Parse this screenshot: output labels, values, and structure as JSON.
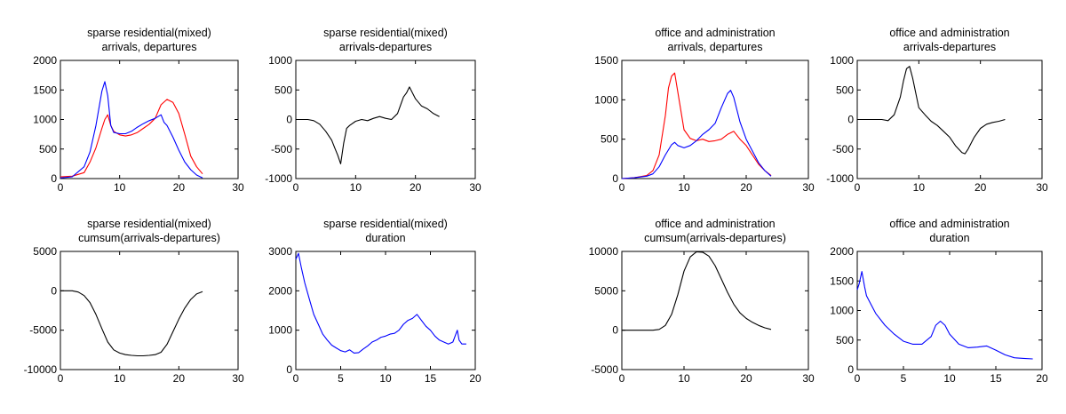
{
  "colors": {
    "arrivals": "#ff0000",
    "departures": "#0000ff",
    "difference": "#000000",
    "duration": "#0000ff",
    "axes": "#000000"
  },
  "chart_data": [
    {
      "id": "p1",
      "type": "line",
      "title": [
        "sparse residential(mixed)",
        "arrivals, departures"
      ],
      "xlim": [
        0,
        30
      ],
      "ylim": [
        0,
        2000
      ],
      "xticks": [
        0,
        10,
        20,
        30
      ],
      "yticks": [
        0,
        500,
        1000,
        1500,
        2000
      ],
      "series": [
        {
          "color": "#ff0000",
          "x": [
            0,
            2,
            4,
            5,
            6,
            7,
            7.5,
            8,
            8.5,
            9,
            10,
            11,
            12,
            13,
            14,
            15,
            16,
            17,
            18,
            19,
            20,
            21,
            22,
            23,
            24
          ],
          "y": [
            30,
            40,
            100,
            280,
            520,
            850,
            1000,
            1080,
            900,
            800,
            740,
            720,
            740,
            780,
            850,
            920,
            1020,
            1250,
            1340,
            1290,
            1100,
            750,
            380,
            200,
            80
          ]
        },
        {
          "color": "#0000ff",
          "x": [
            0,
            2,
            4,
            5,
            6,
            7,
            7.5,
            8,
            8.5,
            9,
            10,
            11,
            12,
            13,
            14,
            15,
            16,
            17,
            17.5,
            18,
            19,
            20,
            21,
            22,
            23,
            24
          ],
          "y": [
            10,
            30,
            200,
            450,
            900,
            1480,
            1640,
            1400,
            900,
            780,
            760,
            760,
            800,
            870,
            930,
            980,
            1020,
            1080,
            950,
            900,
            700,
            480,
            280,
            150,
            60,
            10
          ]
        }
      ]
    },
    {
      "id": "p2",
      "type": "line",
      "title": [
        "sparse residential(mixed)",
        "arrivals-departures"
      ],
      "xlim": [
        0,
        30
      ],
      "ylim": [
        -1000,
        1000
      ],
      "xticks": [
        0,
        10,
        20,
        30
      ],
      "yticks": [
        -1000,
        -500,
        0,
        500,
        1000
      ],
      "series": [
        {
          "color": "#000000",
          "x": [
            0,
            2,
            3,
            4,
            5,
            6,
            6.5,
            7,
            7.5,
            8,
            8.5,
            9,
            10,
            11,
            12,
            13,
            14,
            15,
            16,
            17,
            18,
            18.5,
            19,
            20,
            21,
            22,
            23,
            24
          ],
          "y": [
            0,
            0,
            -20,
            -80,
            -200,
            -350,
            -480,
            -600,
            -750,
            -400,
            -150,
            -100,
            -30,
            0,
            -20,
            20,
            50,
            20,
            0,
            100,
            380,
            450,
            550,
            350,
            230,
            180,
            100,
            50
          ]
        }
      ]
    },
    {
      "id": "p3",
      "type": "line",
      "title": [
        "office and administration",
        "arrivals, departures"
      ],
      "xlim": [
        0,
        30
      ],
      "ylim": [
        0,
        1500
      ],
      "xticks": [
        0,
        10,
        20,
        30
      ],
      "yticks": [
        0,
        500,
        1000,
        1500
      ],
      "series": [
        {
          "color": "#ff0000",
          "x": [
            0,
            2,
            4,
            5,
            6,
            7,
            7.5,
            8,
            8.5,
            9,
            10,
            11,
            12,
            13,
            14,
            15,
            16,
            17,
            18,
            19,
            20,
            21,
            22,
            23,
            24
          ],
          "y": [
            0,
            10,
            40,
            100,
            300,
            800,
            1150,
            1300,
            1340,
            1100,
            620,
            510,
            480,
            500,
            470,
            480,
            500,
            560,
            600,
            500,
            420,
            300,
            180,
            100,
            40
          ]
        },
        {
          "color": "#0000ff",
          "x": [
            0,
            2,
            4,
            5,
            6,
            7,
            8,
            8.5,
            9,
            10,
            11,
            12,
            13,
            14,
            15,
            16,
            17,
            17.5,
            18,
            19,
            20,
            21,
            22,
            23,
            24
          ],
          "y": [
            0,
            10,
            30,
            60,
            150,
            300,
            430,
            460,
            420,
            390,
            420,
            480,
            560,
            620,
            700,
            900,
            1080,
            1120,
            1030,
            720,
            500,
            350,
            200,
            100,
            30
          ]
        }
      ]
    },
    {
      "id": "p4",
      "type": "line",
      "title": [
        "office and administration",
        "arrivals-departures"
      ],
      "xlim": [
        0,
        30
      ],
      "ylim": [
        -1000,
        1000
      ],
      "xticks": [
        0,
        10,
        20,
        30
      ],
      "yticks": [
        -1000,
        -500,
        0,
        500,
        1000
      ],
      "series": [
        {
          "color": "#000000",
          "x": [
            0,
            2,
            4,
            5,
            6,
            7,
            7.5,
            8,
            8.5,
            9,
            10,
            11,
            12,
            13,
            14,
            15,
            16,
            17,
            17.5,
            18,
            19,
            20,
            21,
            22,
            23,
            24
          ],
          "y": [
            0,
            0,
            0,
            -20,
            80,
            380,
            650,
            860,
            900,
            700,
            200,
            80,
            -30,
            -100,
            -200,
            -300,
            -450,
            -560,
            -580,
            -500,
            -300,
            -150,
            -80,
            -50,
            -30,
            0
          ]
        }
      ]
    },
    {
      "id": "p5",
      "type": "line",
      "title": [
        "sparse residential(mixed)",
        "cumsum(arrivals-departures)"
      ],
      "xlim": [
        0,
        30
      ],
      "ylim": [
        -10000,
        5000
      ],
      "xticks": [
        0,
        10,
        20,
        30
      ],
      "yticks": [
        -10000,
        -5000,
        0,
        5000
      ],
      "series": [
        {
          "color": "#000000",
          "x": [
            0,
            2,
            3,
            4,
            5,
            6,
            7,
            8,
            9,
            10,
            11,
            12,
            13,
            14,
            15,
            16,
            17,
            18,
            19,
            20,
            21,
            22,
            23,
            24
          ],
          "y": [
            0,
            0,
            -150,
            -600,
            -1500,
            -3000,
            -4800,
            -6500,
            -7500,
            -7900,
            -8100,
            -8200,
            -8250,
            -8250,
            -8200,
            -8100,
            -7800,
            -6800,
            -5200,
            -3600,
            -2200,
            -1100,
            -400,
            -100
          ]
        }
      ]
    },
    {
      "id": "p6",
      "type": "line",
      "title": [
        "sparse residential(mixed)",
        "duration"
      ],
      "xlim": [
        0,
        20
      ],
      "ylim": [
        0,
        3000
      ],
      "xticks": [
        0,
        5,
        10,
        15,
        20
      ],
      "yticks": [
        0,
        1000,
        2000,
        3000
      ],
      "series": [
        {
          "color": "#0000ff",
          "x": [
            0,
            0.3,
            0.6,
            1,
            1.5,
            2,
            2.5,
            3,
            3.5,
            4,
            4.5,
            5,
            5.5,
            6,
            6.5,
            7,
            7.5,
            8,
            8.5,
            9,
            9.5,
            10,
            10.5,
            11,
            11.5,
            12,
            12.5,
            13,
            13.5,
            14,
            14.5,
            15,
            15.5,
            16,
            16.5,
            17,
            17.5,
            18,
            18.2,
            18.5,
            19
          ],
          "y": [
            2800,
            2950,
            2600,
            2200,
            1800,
            1400,
            1150,
            900,
            750,
            620,
            550,
            480,
            450,
            500,
            420,
            430,
            520,
            600,
            700,
            750,
            820,
            850,
            900,
            920,
            1000,
            1150,
            1250,
            1300,
            1400,
            1250,
            1100,
            1000,
            850,
            750,
            700,
            650,
            700,
            1000,
            750,
            650,
            650
          ]
        }
      ]
    },
    {
      "id": "p7",
      "type": "line",
      "title": [
        "office and administration",
        "cumsum(arrivals-departures)"
      ],
      "xlim": [
        0,
        30
      ],
      "ylim": [
        -5000,
        10000
      ],
      "xticks": [
        0,
        10,
        20,
        30
      ],
      "yticks": [
        -5000,
        0,
        5000,
        10000
      ],
      "series": [
        {
          "color": "#000000",
          "x": [
            0,
            2,
            4,
            5,
            6,
            7,
            8,
            9,
            10,
            11,
            12,
            13,
            14,
            15,
            16,
            17,
            18,
            19,
            20,
            21,
            22,
            23,
            24
          ],
          "y": [
            0,
            0,
            0,
            0,
            100,
            600,
            2000,
            4500,
            7500,
            9300,
            9950,
            9900,
            9400,
            8200,
            6500,
            4800,
            3300,
            2200,
            1500,
            1000,
            600,
            300,
            100
          ]
        }
      ]
    },
    {
      "id": "p8",
      "type": "line",
      "title": [
        "office and administration",
        "duration"
      ],
      "xlim": [
        0,
        20
      ],
      "ylim": [
        0,
        2000
      ],
      "xticks": [
        0,
        5,
        10,
        15,
        20
      ],
      "yticks": [
        0,
        500,
        1000,
        1500,
        2000
      ],
      "series": [
        {
          "color": "#0000ff",
          "x": [
            0,
            0.2,
            0.5,
            0.8,
            1,
            1.5,
            2,
            3,
            4,
            5,
            6,
            7,
            8,
            8.5,
            9,
            9.5,
            10,
            11,
            12,
            13,
            14,
            15,
            16,
            17,
            18,
            19
          ],
          "y": [
            1350,
            1450,
            1660,
            1400,
            1250,
            1100,
            950,
            750,
            600,
            480,
            430,
            430,
            560,
            750,
            820,
            750,
            600,
            430,
            370,
            380,
            400,
            330,
            250,
            200,
            190,
            180
          ]
        }
      ]
    }
  ]
}
